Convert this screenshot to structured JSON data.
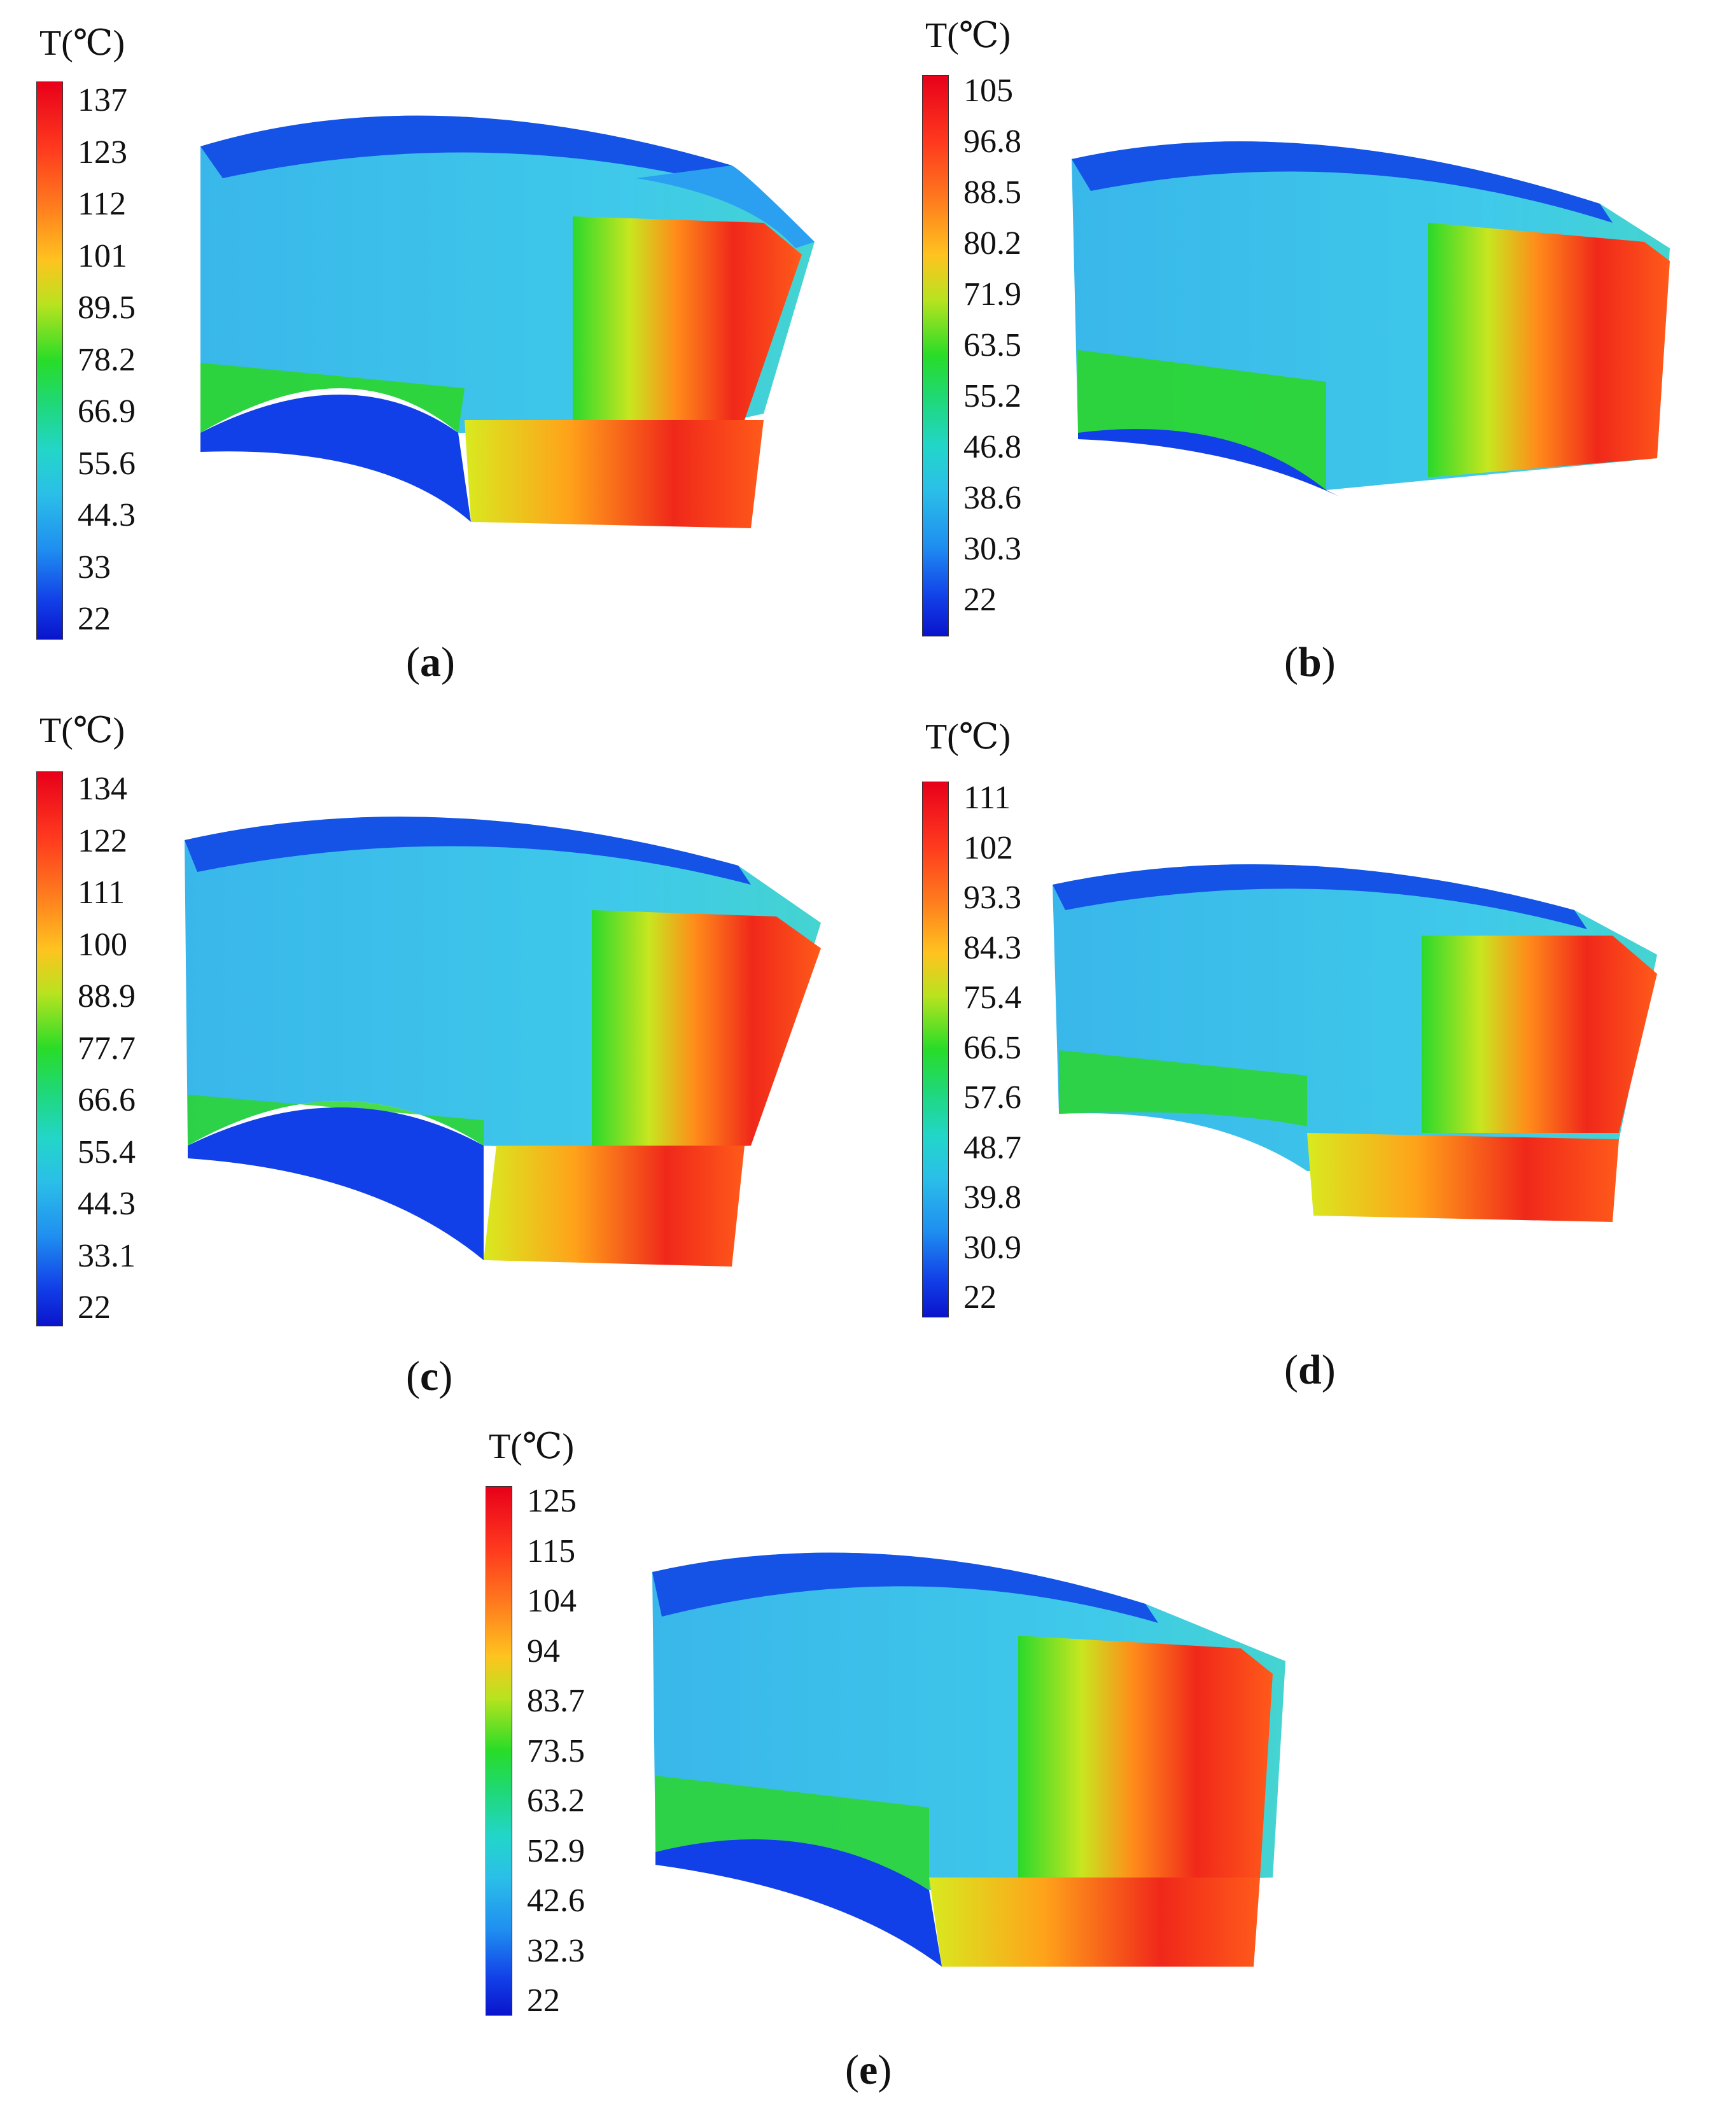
{
  "panels": [
    {
      "id": "a",
      "caption": "a",
      "legend_title": "T(℃)",
      "ticks": [
        "137",
        "123",
        "112",
        "101",
        "89.5",
        "78.2",
        "66.9",
        "55.6",
        "44.3",
        "33",
        "22"
      ]
    },
    {
      "id": "b",
      "caption": "b",
      "legend_title": "T(℃)",
      "ticks": [
        "105",
        "96.8",
        "88.5",
        "80.2",
        "71.9",
        "63.5",
        "55.2",
        "46.8",
        "38.6",
        "30.3",
        "22"
      ]
    },
    {
      "id": "c",
      "caption": "c",
      "legend_title": "T(℃)",
      "ticks": [
        "134",
        "122",
        "111",
        "100",
        "88.9",
        "77.7",
        "66.6",
        "55.4",
        "44.3",
        "33.1",
        "22"
      ]
    },
    {
      "id": "d",
      "caption": "d",
      "legend_title": "T(℃)",
      "ticks": [
        "111",
        "102",
        "93.3",
        "84.3",
        "75.4",
        "66.5",
        "57.6",
        "48.7",
        "39.8",
        "30.9",
        "22"
      ]
    },
    {
      "id": "e",
      "caption": "e",
      "legend_title": "T(℃)",
      "ticks": [
        "125",
        "115",
        "104",
        "94",
        "83.7",
        "73.5",
        "63.2",
        "52.9",
        "42.6",
        "32.3",
        "22"
      ]
    }
  ]
}
